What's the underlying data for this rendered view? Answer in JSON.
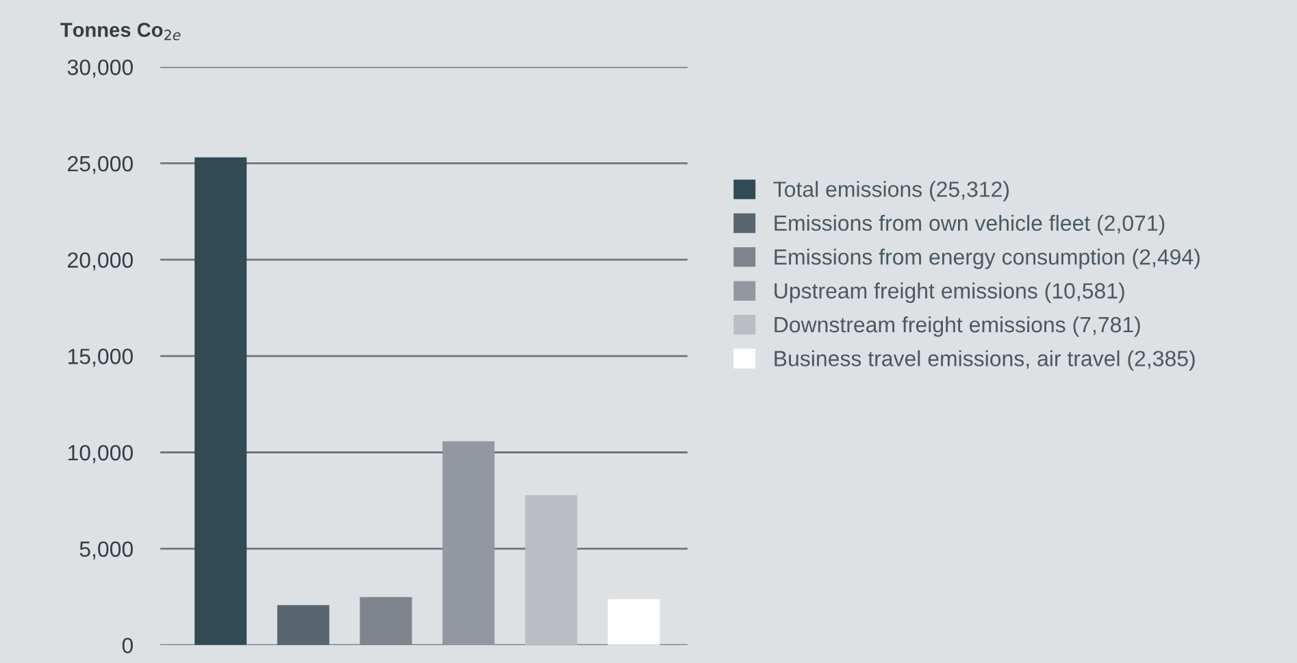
{
  "chart_data": {
    "type": "bar",
    "ylabel": "Tonnes Co$_{2e}$",
    "categories": [
      null,
      null,
      null,
      null,
      null,
      null
    ],
    "series": [
      {
        "name": "Total emissions (25,312)",
        "color": "#314b55",
        "values": [
          25312,
          null,
          null,
          null,
          null,
          null
        ]
      },
      {
        "name": "Emissions from own vehicle fleet (2,071)",
        "color": "#56656f",
        "values": [
          null,
          2071,
          null,
          null,
          null,
          null
        ]
      },
      {
        "name": "Emissions from energy consumption (2,494)",
        "color": "#7e848c",
        "values": [
          null,
          null,
          2494,
          null,
          null,
          null
        ]
      },
      {
        "name": "Upstream freight emissions (10,581)",
        "color": "#9398a0",
        "values": [
          null,
          null,
          null,
          10581,
          null,
          null
        ]
      },
      {
        "name": "Downstream freight emissions (7,781)",
        "color": "#babdc1",
        "values": [
          null,
          null,
          null,
          null,
          7781,
          null
        ]
      },
      {
        "name": "Business travel emissions, air travel (2,385)",
        "color": "#ffffff",
        "values": [
          null,
          null,
          null,
          null,
          null,
          2385
        ]
      }
    ],
    "ylim": [
      0,
      30000
    ],
    "yticks": [
      {
        "value": 0,
        "label": "0"
      },
      {
        "value": 5000,
        "label": "5,000"
      },
      {
        "value": 10000,
        "label": "10,000"
      },
      {
        "value": 15000,
        "label": "15,000"
      },
      {
        "value": 20000,
        "label": "20,000"
      },
      {
        "value": 25000,
        "label": "25,000"
      },
      {
        "value": 30000,
        "label": "30,000"
      }
    ],
    "grid": "y",
    "legend": "right",
    "tick_labels": "y"
  }
}
